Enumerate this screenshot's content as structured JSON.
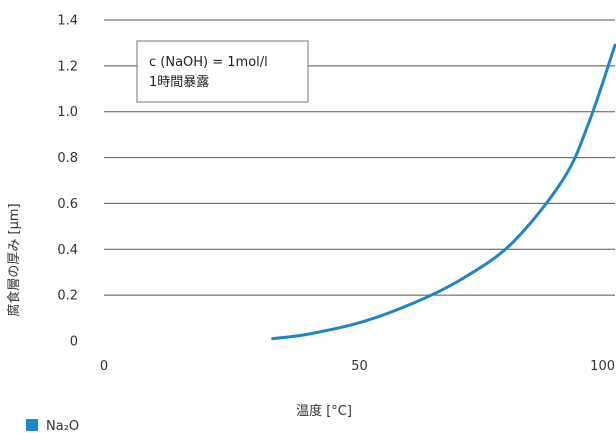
{
  "chart_data": {
    "type": "line",
    "title": "",
    "xlabel": "温度 [°C]",
    "ylabel": "腐食層の厚み [µm]",
    "xlim": [
      0,
      100
    ],
    "ylim": [
      0,
      1.4
    ],
    "x_ticks": [
      "0",
      "50",
      "100"
    ],
    "x_tick_values": [
      0,
      50,
      100
    ],
    "y_ticks": [
      "0",
      "0.2",
      "0.4",
      "0.6",
      "0.8",
      "1.0",
      "1.2",
      "1.4"
    ],
    "y_tick_values": [
      0,
      0.2,
      0.4,
      0.6,
      0.8,
      1.0,
      1.2,
      1.4
    ],
    "grid": "horizontal",
    "legend_position": "bottom-left",
    "annotation": {
      "line1": "c (NaOH) = 1mol/l",
      "line2": "1時間暴露"
    },
    "series": [
      {
        "name": "Na₂O",
        "color": "#1e86c8",
        "x": [
          33,
          40,
          50,
          60,
          70,
          80,
          90,
          95,
          100
        ],
        "y": [
          0.01,
          0.03,
          0.08,
          0.16,
          0.27,
          0.43,
          0.71,
          0.96,
          1.29
        ]
      }
    ]
  }
}
